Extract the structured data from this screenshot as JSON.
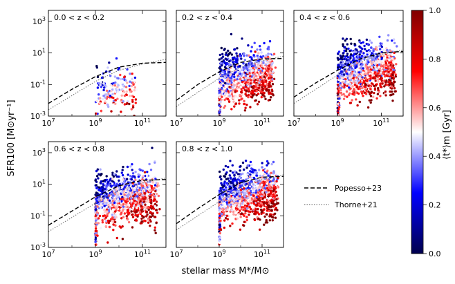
{
  "figure": {
    "ylabel": "SFR100 [M⊙yr⁻¹]",
    "xlabel": "stellar mass M*/M⊙",
    "colorbar": {
      "label": "⟨t*⟩m [Gyr]",
      "ticks": [
        "0.0",
        "0.2",
        "0.4",
        "0.6",
        "0.8",
        "1.0"
      ],
      "cmap": "seismic",
      "range": [
        0.0,
        1.0
      ],
      "colors": {
        "low": "#00004d",
        "mid": "#ffffff",
        "high": "#800000"
      }
    },
    "legend": {
      "placement": "right",
      "entries": [
        {
          "label": "Popesso+23",
          "style": "dashed",
          "color": "#000000"
        },
        {
          "label": "Thorne+21",
          "style": "dotted",
          "color": "#777777"
        }
      ]
    }
  },
  "chart_data": [
    {
      "type": "scatter",
      "title": "0.0 < z < 0.2",
      "xscale": "log",
      "yscale": "log",
      "xlim": [
        10000000.0,
        1000000000000.0
      ],
      "ylim": [
        0.001,
        5000
      ],
      "xticks": [
        "10^7",
        "10^9",
        "10^11"
      ],
      "yticks": [
        "10^-3",
        "10^-1",
        "10^1",
        "10^3"
      ],
      "cloud": {
        "xmin": 9.0,
        "xmax": 10.7,
        "young_ms_logsfr_at_9": -0.4,
        "n_points": 180
      },
      "popesso23": {
        "logM": [
          7,
          8,
          9,
          10,
          11,
          12
        ],
        "logSFR": [
          -2.2,
          -1.3,
          -0.5,
          0.1,
          0.35,
          0.4
        ]
      },
      "thorne21": {
        "logM": [
          7,
          8,
          9,
          10,
          11,
          12
        ],
        "logSFR": [
          -2.6,
          -1.7,
          -0.8,
          -0.1,
          0.3,
          0.6
        ]
      }
    },
    {
      "type": "scatter",
      "title": "0.2 < z < 0.4",
      "xscale": "log",
      "yscale": "log",
      "xlim": [
        10000000.0,
        1000000000000.0
      ],
      "ylim": [
        0.001,
        5000
      ],
      "xticks": [
        "10^7",
        "10^9",
        "10^11"
      ],
      "yticks": [
        "10^-3",
        "10^-1",
        "10^1",
        "10^3"
      ],
      "cloud": {
        "xmin": 9.0,
        "xmax": 11.5,
        "young_ms_logsfr_at_9": 0.3,
        "n_points": 950
      },
      "popesso23": {
        "logM": [
          7,
          8,
          9,
          10,
          11,
          12
        ],
        "logSFR": [
          -2.0,
          -1.0,
          -0.2,
          0.4,
          0.62,
          0.65
        ]
      },
      "thorne21": {
        "logM": [
          7,
          8,
          9,
          10,
          11,
          12
        ],
        "logSFR": [
          -2.4,
          -1.5,
          -0.6,
          0.1,
          0.5,
          0.8
        ]
      }
    },
    {
      "type": "scatter",
      "title": "0.4 < z < 0.6",
      "xscale": "log",
      "yscale": "log",
      "xlim": [
        10000000.0,
        1000000000000.0
      ],
      "ylim": [
        0.001,
        5000
      ],
      "xticks": [
        "10^7",
        "10^9",
        "10^11"
      ],
      "yticks": [
        "10^-3",
        "10^-1",
        "10^1",
        "10^3"
      ],
      "cloud": {
        "xmin": 9.0,
        "xmax": 11.6,
        "young_ms_logsfr_at_9": 0.6,
        "n_points": 1000
      },
      "popesso23": {
        "logM": [
          7,
          8,
          9,
          10,
          11,
          12
        ],
        "logSFR": [
          -1.8,
          -0.9,
          -0.1,
          0.6,
          1.0,
          1.1
        ]
      },
      "thorne21": {
        "logM": [
          7,
          8,
          9,
          10,
          11,
          12
        ],
        "logSFR": [
          -2.2,
          -1.3,
          -0.4,
          0.4,
          0.9,
          1.2
        ]
      }
    },
    {
      "type": "scatter",
      "title": "0.6 < z < 0.8",
      "xscale": "log",
      "yscale": "log",
      "xlim": [
        10000000.0,
        1000000000000.0
      ],
      "ylim": [
        0.001,
        5000
      ],
      "xticks": [
        "10^7",
        "10^9",
        "10^11"
      ],
      "yticks": [
        "10^-3",
        "10^-1",
        "10^1",
        "10^3"
      ],
      "cloud": {
        "xmin": 9.0,
        "xmax": 11.6,
        "young_ms_logsfr_at_9": 0.9,
        "n_points": 1000
      },
      "popesso23": {
        "logM": [
          7,
          8,
          9,
          10,
          11,
          12
        ],
        "logSFR": [
          -1.6,
          -0.7,
          0.2,
          0.9,
          1.25,
          1.3
        ]
      },
      "thorne21": {
        "logM": [
          7,
          8,
          9,
          10,
          11,
          12
        ],
        "logSFR": [
          -2.0,
          -1.1,
          -0.2,
          0.6,
          1.1,
          1.4
        ]
      }
    },
    {
      "type": "scatter",
      "title": "0.8 < z < 1.0",
      "xscale": "log",
      "yscale": "log",
      "xlim": [
        10000000.0,
        1000000000000.0
      ],
      "ylim": [
        0.001,
        5000
      ],
      "xticks": [
        "10^7",
        "10^9",
        "10^11"
      ],
      "yticks": [
        "10^-3",
        "10^-1",
        "10^1",
        "10^3"
      ],
      "cloud": {
        "xmin": 9.0,
        "xmax": 11.7,
        "young_ms_logsfr_at_9": 1.1,
        "n_points": 1000
      },
      "popesso23": {
        "logM": [
          7,
          8,
          9,
          10,
          11,
          12
        ],
        "logSFR": [
          -1.5,
          -0.55,
          0.35,
          1.1,
          1.45,
          1.5
        ]
      },
      "thorne21": {
        "logM": [
          7,
          8,
          9,
          10,
          11,
          12
        ],
        "logSFR": [
          -1.9,
          -1.0,
          -0.1,
          0.8,
          1.3,
          1.6
        ]
      }
    }
  ]
}
